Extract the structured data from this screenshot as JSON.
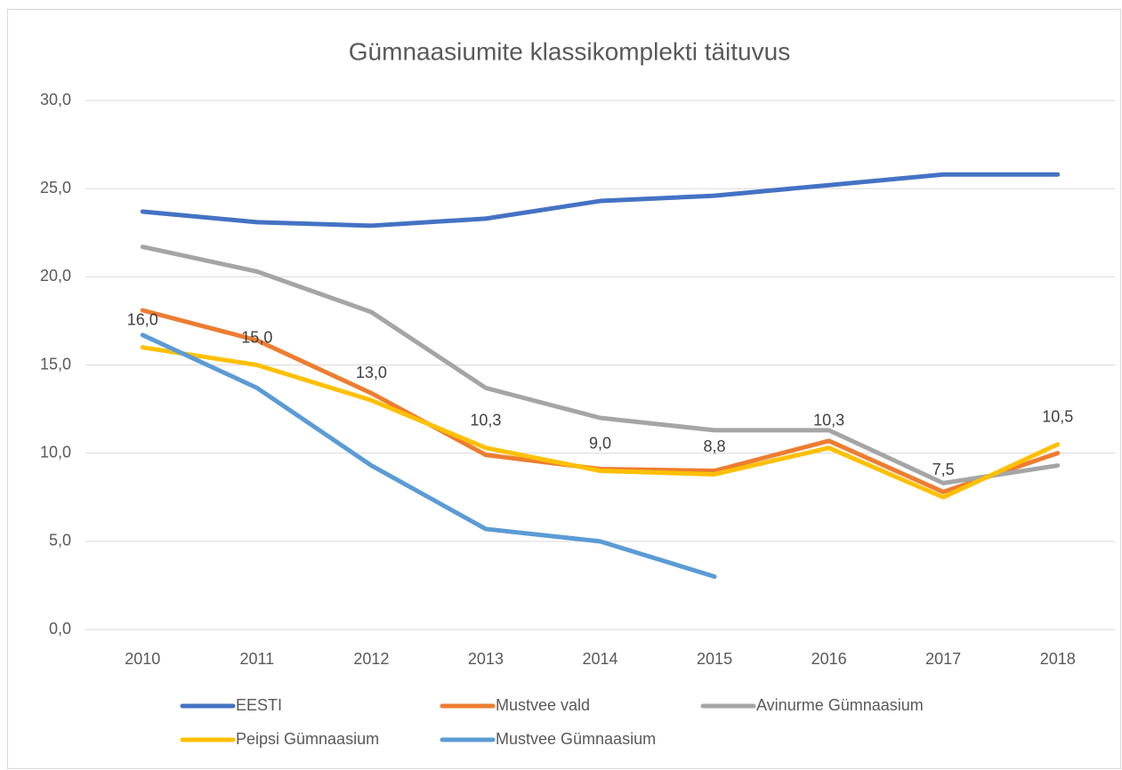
{
  "chart_data": {
    "type": "line",
    "title": "Gümnaasiumite klassikomplekti täituvus",
    "categories": [
      "2010",
      "2011",
      "2012",
      "2013",
      "2014",
      "2015",
      "2016",
      "2017",
      "2018"
    ],
    "ylim": [
      0,
      30
    ],
    "yticks": [
      {
        "value": 0,
        "label": "0,0"
      },
      {
        "value": 5,
        "label": "5,0"
      },
      {
        "value": 10,
        "label": "10,0"
      },
      {
        "value": 15,
        "label": "15,0"
      },
      {
        "value": 20,
        "label": "20,0"
      },
      {
        "value": 25,
        "label": "25,0"
      },
      {
        "value": 30,
        "label": "30,0"
      }
    ],
    "grid": true,
    "legend": "bottom",
    "series": [
      {
        "name": "EESTI",
        "color": "#4472c4",
        "values": [
          23.7,
          23.1,
          22.9,
          23.3,
          24.3,
          24.6,
          25.2,
          25.8,
          25.8
        ]
      },
      {
        "name": "Mustvee vald",
        "color": "#ed7d31",
        "values": [
          18.1,
          16.4,
          13.4,
          9.9,
          9.1,
          9.0,
          10.7,
          7.8,
          10.0
        ]
      },
      {
        "name": "Avinurme Gümnaasium",
        "color": "#a5a5a5",
        "values": [
          21.7,
          20.3,
          18.0,
          13.7,
          12.0,
          11.3,
          11.3,
          8.3,
          9.3
        ]
      },
      {
        "name": "Peipsi Gümnaasium",
        "color": "#ffc000",
        "values": [
          16.0,
          15.0,
          13.0,
          10.3,
          9.0,
          8.8,
          10.3,
          7.5,
          10.5
        ],
        "value_labels": [
          "16,0",
          "15,0",
          "13,0",
          "10,3",
          "9,0",
          "8,8",
          "10,3",
          "7,5",
          "10,5"
        ]
      },
      {
        "name": "Mustvee Gümnaasium",
        "color": "#5b9bd5",
        "values": [
          16.7,
          13.7,
          9.3,
          5.7,
          5.0,
          3.0,
          null,
          null,
          null
        ]
      }
    ]
  }
}
